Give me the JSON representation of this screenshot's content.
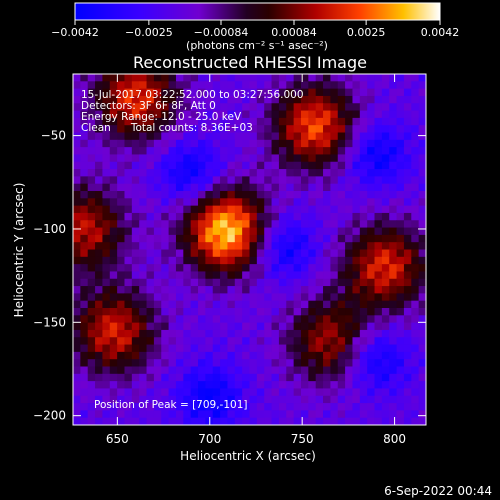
{
  "chart_data": {
    "type": "heatmap",
    "title": "Reconstructed RHESSI Image",
    "xlabel": "Heliocentric X (arcsec)",
    "ylabel": "Heliocentric Y (arcsec)",
    "xlim": [
      626,
      817
    ],
    "ylim": [
      -205,
      -17
    ],
    "x_ticks": [
      650,
      700,
      750,
      800
    ],
    "y_ticks": [
      -50,
      -100,
      -150,
      -200
    ],
    "x_tick_labels": [
      "650",
      "700",
      "750",
      "800"
    ],
    "y_tick_labels": [
      "−50",
      "−100",
      "−150",
      "−200"
    ],
    "colorbar": {
      "min": -0.0042,
      "max": 0.0042,
      "ticks": [
        -0.0042,
        -0.0025,
        -0.00084,
        0.00084,
        0.0025,
        0.0042
      ],
      "tick_labels": [
        "−0.0042",
        "−0.0025",
        "−0.00084",
        "0.00084",
        "0.0025",
        "0.0042"
      ],
      "unit_label": "(photons cm⁻² s⁻¹ asec⁻²)"
    },
    "annotations": [
      "15-Jul-2017 03:22:52.000 to 03:27:56.000",
      "Detectors: 3F 6F 8F, Att 0",
      "Energy Range: 12.0 - 25.0 keV",
      "Clean      Total counts: 8.36E+03"
    ],
    "peak_label": "Position of Peak = [709,-101]",
    "peak": [
      709,
      -101
    ],
    "sources": [
      {
        "x": 709,
        "y": -101,
        "peak": 0.0042
      },
      {
        "x": 757,
        "y": -45,
        "peak": 0.0032
      },
      {
        "x": 648,
        "y": -155,
        "peak": 0.0028
      },
      {
        "x": 660,
        "y": -30,
        "peak": 0.003
      },
      {
        "x": 632,
        "y": -100,
        "peak": 0.0026
      },
      {
        "x": 795,
        "y": -120,
        "peak": 0.0029
      },
      {
        "x": 765,
        "y": -160,
        "peak": 0.0024
      }
    ],
    "grid": false
  },
  "footer_date": "6-Sep-2022 00:44"
}
